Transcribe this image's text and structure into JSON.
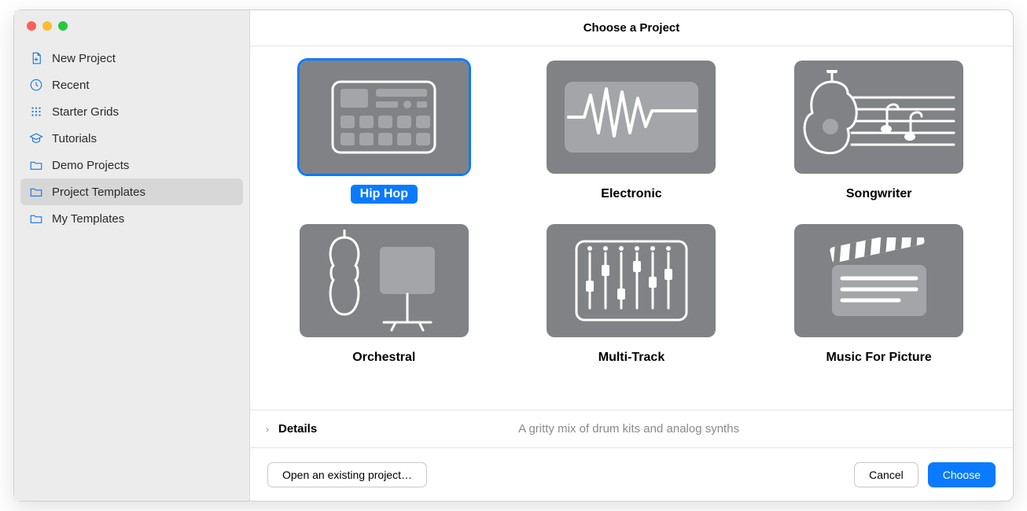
{
  "title": "Choose a Project",
  "sidebar": {
    "items": [
      {
        "label": "New Project",
        "icon": "document-new",
        "selected": false
      },
      {
        "label": "Recent",
        "icon": "clock",
        "selected": false
      },
      {
        "label": "Starter Grids",
        "icon": "grid",
        "selected": false
      },
      {
        "label": "Tutorials",
        "icon": "graduation",
        "selected": false
      },
      {
        "label": "Demo Projects",
        "icon": "folder",
        "selected": false
      },
      {
        "label": "Project Templates",
        "icon": "folder",
        "selected": true
      },
      {
        "label": "My Templates",
        "icon": "folder",
        "selected": false
      }
    ]
  },
  "templates": [
    {
      "label": "Hip Hop",
      "thumb": "drum-machine",
      "selected": true
    },
    {
      "label": "Electronic",
      "thumb": "waveform",
      "selected": false
    },
    {
      "label": "Songwriter",
      "thumb": "guitar",
      "selected": false
    },
    {
      "label": "Orchestral",
      "thumb": "violin",
      "selected": false
    },
    {
      "label": "Multi-Track",
      "thumb": "mixer",
      "selected": false
    },
    {
      "label": "Music For Picture",
      "thumb": "clapper",
      "selected": false
    }
  ],
  "details": {
    "label": "Details",
    "description": "A gritty mix of drum kits and analog synths"
  },
  "footer": {
    "open": "Open an existing project…",
    "cancel": "Cancel",
    "choose": "Choose"
  },
  "colors": {
    "accent": "#0a7aff",
    "sidebar_bg": "#ececec",
    "thumb_bg": "#808285"
  }
}
